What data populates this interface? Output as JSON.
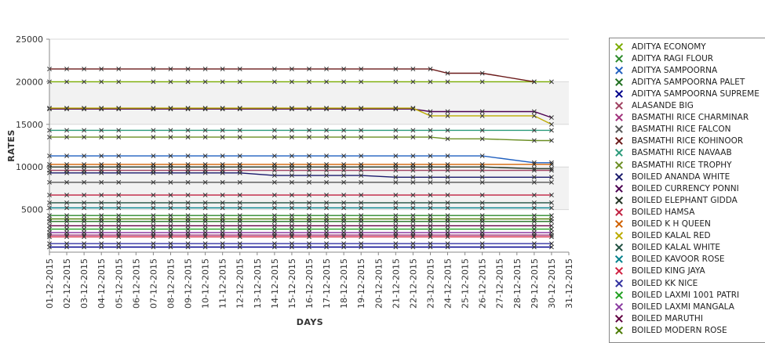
{
  "chart_data": {
    "type": "line",
    "xlabel": "DAYS",
    "ylabel": "RATES",
    "ylim": [
      0,
      25000
    ],
    "yticks": [
      5000,
      10000,
      15000,
      20000,
      25000
    ],
    "categories": [
      "01-12-2015",
      "02-12-2015",
      "03-12-2015",
      "04-12-2015",
      "05-12-2015",
      "06-12-2015",
      "07-12-2015",
      "08-12-2015",
      "09-12-2015",
      "10-12-2015",
      "11-12-2015",
      "12-12-2015",
      "13-12-2015",
      "14-12-2015",
      "15-12-2015",
      "16-12-2015",
      "17-12-2015",
      "18-12-2015",
      "19-12-2015",
      "20-12-2015",
      "21-12-2015",
      "22-12-2015",
      "23-12-2015",
      "24-12-2015",
      "25-12-2015",
      "26-12-2015",
      "27-12-2015",
      "28-12-2015",
      "29-12-2015",
      "30-12-2015",
      "31-12-2015"
    ],
    "grid": true,
    "legend_position": "right",
    "series": [
      {
        "name": "ADITYA ECONOMY",
        "color": "#7aab00",
        "values": [
          20000,
          20000,
          20000,
          20000,
          20000,
          null,
          20000,
          20000,
          20000,
          20000,
          20000,
          20000,
          null,
          20000,
          20000,
          20000,
          20000,
          20000,
          20000,
          null,
          20000,
          20000,
          20000,
          20000,
          null,
          20000,
          null,
          null,
          20000,
          20000,
          null
        ]
      },
      {
        "name": "ADITYA RAGI FLOUR",
        "color": "#2b8a2b",
        "values": [
          4300,
          4300,
          4300,
          4300,
          4300,
          null,
          4300,
          4300,
          4300,
          4300,
          4300,
          4300,
          null,
          4300,
          4300,
          4300,
          4300,
          4300,
          4300,
          null,
          4300,
          4300,
          4300,
          4300,
          null,
          4300,
          null,
          null,
          4300,
          4300,
          null
        ]
      },
      {
        "name": "ADITYA SAMPOORNA",
        "color": "#1f5fbf",
        "values": [
          11300,
          11300,
          11300,
          11300,
          11300,
          null,
          11300,
          11300,
          11300,
          11300,
          11300,
          11300,
          null,
          11300,
          11300,
          11300,
          11300,
          11300,
          11300,
          null,
          11300,
          11300,
          11300,
          11300,
          null,
          11300,
          null,
          null,
          10500,
          10500,
          null
        ]
      },
      {
        "name": "ADITYA SAMPOORNA PALET",
        "color": "#1e6e1e",
        "values": [
          3600,
          3600,
          3600,
          3600,
          3600,
          null,
          3600,
          3600,
          3600,
          3600,
          3600,
          3600,
          null,
          3600,
          3600,
          3600,
          3600,
          3600,
          3600,
          null,
          3600,
          3600,
          3600,
          3600,
          null,
          3600,
          null,
          null,
          3600,
          3600,
          null
        ]
      },
      {
        "name": "ADITYA SAMPOORNA SUPREME",
        "color": "#00008b",
        "values": [
          600,
          600,
          600,
          600,
          600,
          null,
          600,
          600,
          600,
          600,
          600,
          600,
          null,
          600,
          600,
          600,
          600,
          600,
          600,
          null,
          600,
          600,
          600,
          600,
          null,
          600,
          null,
          null,
          600,
          600,
          null
        ]
      },
      {
        "name": "ALASANDE BIG",
        "color": "#a04060",
        "values": [
          9600,
          9600,
          9600,
          9600,
          9600,
          null,
          9600,
          9600,
          9600,
          9600,
          9600,
          9600,
          null,
          9600,
          9600,
          9600,
          9600,
          9600,
          9600,
          null,
          9600,
          9600,
          9600,
          9600,
          null,
          9600,
          null,
          null,
          9600,
          9600,
          null
        ]
      },
      {
        "name": "BASMATHI RICE CHARMINAR",
        "color": "#a0307a",
        "values": [
          2000,
          2000,
          2000,
          2000,
          2000,
          null,
          2000,
          2000,
          2000,
          2000,
          2000,
          2000,
          null,
          2000,
          2000,
          2000,
          2000,
          2000,
          2000,
          null,
          2000,
          2000,
          2000,
          2000,
          null,
          2000,
          null,
          null,
          2000,
          2000,
          null
        ]
      },
      {
        "name": "BASMATHI RICE FALCON",
        "color": "#555555",
        "values": [
          8200,
          8200,
          8200,
          8200,
          8200,
          null,
          8200,
          8200,
          8200,
          8200,
          8200,
          8200,
          null,
          8200,
          8200,
          8200,
          8200,
          8200,
          8200,
          null,
          8200,
          8200,
          8200,
          8200,
          null,
          8200,
          null,
          null,
          8200,
          8200,
          null
        ]
      },
      {
        "name": "BASMATHI RICE KOHINOOR",
        "color": "#6b1a1a",
        "values": [
          21500,
          21500,
          21500,
          21500,
          21500,
          null,
          21500,
          21500,
          21500,
          21500,
          21500,
          21500,
          null,
          21500,
          21500,
          21500,
          21500,
          21500,
          21500,
          null,
          21500,
          21500,
          21500,
          21000,
          null,
          21000,
          null,
          null,
          20000,
          null,
          null
        ]
      },
      {
        "name": "BASMATHI RICE NAVAAB",
        "color": "#2a9a7a",
        "values": [
          14300,
          14300,
          14300,
          14300,
          14300,
          null,
          14300,
          14300,
          14300,
          14300,
          14300,
          14300,
          null,
          14300,
          14300,
          14300,
          14300,
          14300,
          14300,
          null,
          14300,
          14300,
          14300,
          14300,
          null,
          14300,
          null,
          null,
          14300,
          14300,
          null
        ]
      },
      {
        "name": "BASMATHI RICE TROPHY",
        "color": "#6b8e23",
        "values": [
          13500,
          13500,
          13500,
          13500,
          13500,
          null,
          13500,
          13500,
          13500,
          13500,
          13500,
          13500,
          null,
          13500,
          13500,
          13500,
          13500,
          13500,
          13500,
          null,
          13500,
          13500,
          13500,
          13300,
          null,
          13300,
          null,
          null,
          13100,
          13100,
          null
        ]
      },
      {
        "name": "BOILED ANANDA WHITE",
        "color": "#1a1a6b",
        "values": [
          9300,
          9300,
          9300,
          9300,
          9300,
          null,
          9300,
          9300,
          9300,
          9300,
          9300,
          9300,
          null,
          9000,
          9000,
          9000,
          9000,
          9000,
          9000,
          null,
          8800,
          8800,
          8800,
          8800,
          null,
          8800,
          null,
          null,
          8800,
          8800,
          null
        ]
      },
      {
        "name": "BOILED CURRENCY PONNI",
        "color": "#4b0050",
        "values": [
          16800,
          16800,
          16800,
          16800,
          16800,
          null,
          16800,
          16800,
          16800,
          16800,
          16800,
          16800,
          null,
          16800,
          16800,
          16800,
          16800,
          16800,
          16800,
          null,
          16800,
          16800,
          16500,
          16500,
          null,
          16500,
          null,
          null,
          16500,
          15800,
          null
        ]
      },
      {
        "name": "BOILED ELEPHANT GIDDA",
        "color": "#223322",
        "values": [
          10000,
          10000,
          10000,
          10000,
          10000,
          null,
          10000,
          10000,
          10000,
          10000,
          10000,
          10000,
          null,
          10000,
          10000,
          10000,
          10000,
          10000,
          10000,
          null,
          10000,
          10000,
          10000,
          10000,
          null,
          10000,
          null,
          null,
          9800,
          9800,
          null
        ]
      },
      {
        "name": "BOILED HAMSA",
        "color": "#c02040",
        "values": [
          6700,
          6700,
          6700,
          6700,
          6700,
          null,
          6700,
          6700,
          6700,
          6700,
          6700,
          6700,
          null,
          6700,
          6700,
          6700,
          6700,
          6700,
          6700,
          null,
          6700,
          6700,
          6700,
          6700,
          null,
          6700,
          null,
          null,
          6700,
          6700,
          null
        ]
      },
      {
        "name": "BOILED K H QUEEN",
        "color": "#d06000",
        "values": [
          10300,
          10300,
          10300,
          10300,
          10300,
          null,
          10300,
          10300,
          10300,
          10300,
          10300,
          10300,
          null,
          10300,
          10300,
          10300,
          10300,
          10300,
          10300,
          null,
          10300,
          10300,
          10300,
          10300,
          null,
          10300,
          null,
          null,
          10300,
          10300,
          null
        ]
      },
      {
        "name": "BOILED KALAL RED",
        "color": "#bbaa00",
        "values": [
          16900,
          16900,
          16900,
          16900,
          16900,
          null,
          16900,
          16900,
          16900,
          16900,
          16900,
          16900,
          null,
          16900,
          16900,
          16900,
          16900,
          16900,
          16900,
          null,
          16900,
          16900,
          16000,
          16000,
          null,
          16000,
          null,
          null,
          16000,
          15000,
          null
        ]
      },
      {
        "name": "BOILED KALAL WHITE",
        "color": "#205040",
        "values": [
          5800,
          5800,
          5800,
          5800,
          5800,
          null,
          5800,
          5800,
          5800,
          5800,
          5800,
          5800,
          null,
          5800,
          5800,
          5800,
          5800,
          5800,
          5800,
          null,
          5800,
          5800,
          5800,
          5800,
          null,
          5800,
          null,
          null,
          5800,
          5800,
          null
        ]
      },
      {
        "name": "BOILED KAVOOR ROSE",
        "color": "#00808b",
        "values": [
          5200,
          5200,
          5200,
          5200,
          5200,
          null,
          5200,
          5200,
          5200,
          5200,
          5200,
          5200,
          null,
          5200,
          5200,
          5200,
          5200,
          5200,
          5200,
          null,
          5200,
          5200,
          5200,
          5200,
          null,
          5200,
          null,
          null,
          5200,
          5200,
          null
        ]
      },
      {
        "name": "BOILED KING JAYA",
        "color": "#d02040",
        "values": [
          1800,
          1800,
          1800,
          1800,
          1800,
          null,
          1800,
          1800,
          1800,
          1800,
          1800,
          1800,
          null,
          1800,
          1800,
          1800,
          1800,
          1800,
          1800,
          null,
          1800,
          1800,
          1800,
          1800,
          null,
          1800,
          null,
          null,
          1800,
          1800,
          null
        ]
      },
      {
        "name": "BOILED KK NICE",
        "color": "#3030a0",
        "values": [
          1000,
          1000,
          1000,
          1000,
          1000,
          null,
          1000,
          1000,
          1000,
          1000,
          1000,
          1000,
          null,
          1000,
          1000,
          1000,
          1000,
          1000,
          1000,
          null,
          1000,
          1000,
          1000,
          1000,
          null,
          1000,
          null,
          null,
          1000,
          1000,
          null
        ]
      },
      {
        "name": "BOILED LAXMI 1001 PATRI",
        "color": "#20a020",
        "values": [
          2700,
          2700,
          2700,
          2700,
          2700,
          null,
          2700,
          2700,
          2700,
          2700,
          2700,
          2700,
          null,
          2700,
          2700,
          2700,
          2700,
          2700,
          2700,
          null,
          2700,
          2700,
          2700,
          2700,
          null,
          2700,
          null,
          null,
          2700,
          2700,
          null
        ]
      },
      {
        "name": "BOILED LAXMI MANGALA",
        "color": "#8a3aa0",
        "values": [
          2300,
          2300,
          2300,
          2300,
          2300,
          null,
          2300,
          2300,
          2300,
          2300,
          2300,
          2300,
          null,
          2300,
          2300,
          2300,
          2300,
          2300,
          2300,
          null,
          2300,
          2300,
          2300,
          2300,
          null,
          2300,
          null,
          null,
          2300,
          2300,
          null
        ]
      },
      {
        "name": "BOILED MARUTHI",
        "color": "#600040",
        "values": [
          3100,
          3100,
          3100,
          3100,
          3100,
          null,
          3100,
          3100,
          3100,
          3100,
          3100,
          3100,
          null,
          3100,
          3100,
          3100,
          3100,
          3100,
          3100,
          null,
          3100,
          3100,
          3100,
          3100,
          null,
          3100,
          null,
          null,
          3100,
          3100,
          null
        ]
      },
      {
        "name": "BOILED MODERN ROSE",
        "color": "#4a7a00",
        "values": [
          3900,
          3900,
          3900,
          3900,
          3900,
          null,
          3900,
          3900,
          3900,
          3900,
          3900,
          3900,
          null,
          3900,
          3900,
          3900,
          3900,
          3900,
          3900,
          null,
          3900,
          3900,
          3900,
          3900,
          null,
          3900,
          null,
          null,
          3900,
          3900,
          null
        ]
      }
    ]
  }
}
